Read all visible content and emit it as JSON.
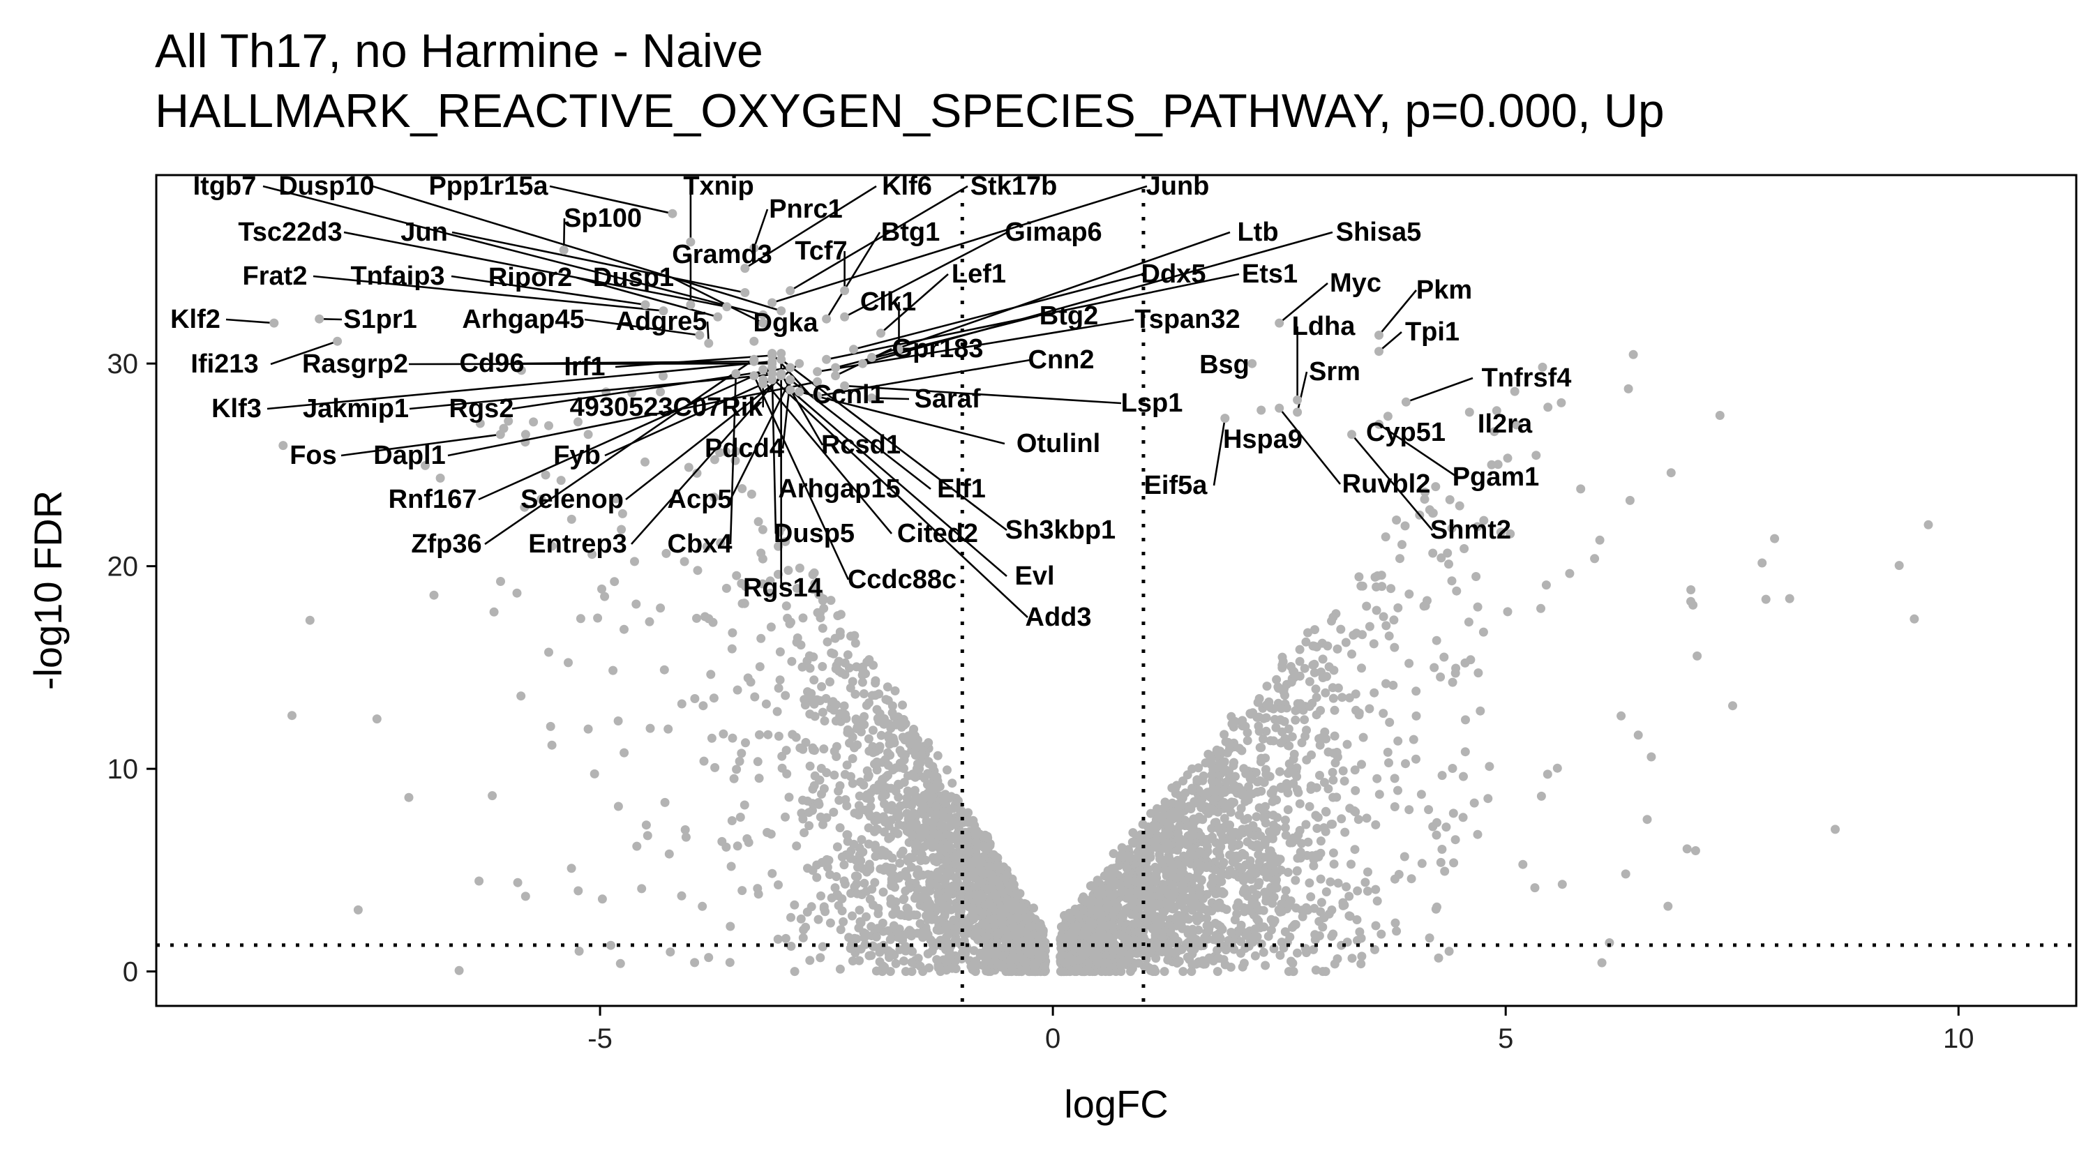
{
  "chart_data": {
    "type": "scatter",
    "title": "All Th17, no Harmine - Naive",
    "subtitle": "HALLMARK_REACTIVE_OXYGEN_SPECIES_PATHWAY, p=0.000, Up",
    "xlabel": "logFC",
    "ylabel": "-log10 FDR",
    "xlim": [
      -9.9,
      11.3
    ],
    "ylim": [
      -1.7,
      39.3
    ],
    "xticks": [
      -5,
      0,
      5,
      10
    ],
    "yticks": [
      0,
      10,
      20,
      30
    ],
    "grid": false,
    "legend": "none",
    "point_color": "#b3b3b3",
    "threshold_lines": {
      "vertical_x": [
        -1,
        1
      ],
      "horizontal_y": [
        1.3
      ]
    },
    "labeled_points": [
      {
        "gene": "Itgb7",
        "x": -3.2,
        "y": 32.4
      },
      {
        "gene": "Dusp10",
        "x": -3.0,
        "y": 32.6
      },
      {
        "gene": "Ppp1r15a",
        "x": -4.2,
        "y": 37.4
      },
      {
        "gene": "Txnip",
        "x": -4.0,
        "y": 36.0
      },
      {
        "gene": "Klf6",
        "x": -3.4,
        "y": 34.7
      },
      {
        "gene": "Stk17b",
        "x": -2.9,
        "y": 33.6
      },
      {
        "gene": "Junb",
        "x": -3.1,
        "y": 33.0
      },
      {
        "gene": "Pnrc1",
        "x": -3.3,
        "y": 35.7
      },
      {
        "gene": "Sp100",
        "x": -5.4,
        "y": 35.6
      },
      {
        "gene": "Tsc22d3",
        "x": -3.6,
        "y": 32.8
      },
      {
        "gene": "Jun",
        "x": -3.4,
        "y": 33.5
      },
      {
        "gene": "Gramd3",
        "x": -4.0,
        "y": 32.9
      },
      {
        "gene": "Tcf7",
        "x": -2.3,
        "y": 33.6
      },
      {
        "gene": "Btg1",
        "x": -2.5,
        "y": 32.2
      },
      {
        "gene": "Gimap6",
        "x": -2.3,
        "y": 32.3
      },
      {
        "gene": "Ltb",
        "x": -2.0,
        "y": 30.3
      },
      {
        "gene": "Shisa5",
        "x": -2.1,
        "y": 30.0
      },
      {
        "gene": "Frat2",
        "x": -4.3,
        "y": 32.6
      },
      {
        "gene": "Tnfaip3",
        "x": -4.5,
        "y": 32.9
      },
      {
        "gene": "Ripor2",
        "x": -3.7,
        "y": 32.3
      },
      {
        "gene": "Dusp1",
        "x": -3.2,
        "y": 32.0
      },
      {
        "gene": "Lef1",
        "x": -1.9,
        "y": 31.5
      },
      {
        "gene": "Ddx5",
        "x": -2.2,
        "y": 30.7
      },
      {
        "gene": "Ets1",
        "x": -2.5,
        "y": 30.2
      },
      {
        "gene": "Myc",
        "x": 2.5,
        "y": 32.0
      },
      {
        "gene": "Pkm",
        "x": 3.6,
        "y": 31.4
      },
      {
        "gene": "Klf2",
        "x": -8.6,
        "y": 32.0
      },
      {
        "gene": "S1pr1",
        "x": -8.1,
        "y": 32.2
      },
      {
        "gene": "Arhgap45",
        "x": -3.9,
        "y": 31.4
      },
      {
        "gene": "Adgre5",
        "x": -3.8,
        "y": 31.0
      },
      {
        "gene": "Dgka",
        "x": -3.3,
        "y": 31.1
      },
      {
        "gene": "Clk1",
        "x": -1.7,
        "y": 30.7
      },
      {
        "gene": "Btg2",
        "x": -2.4,
        "y": 29.8
      },
      {
        "gene": "Tspan32",
        "x": -2.6,
        "y": 29.6
      },
      {
        "gene": "Ldha",
        "x": 2.7,
        "y": 28.2
      },
      {
        "gene": "Tpi1",
        "x": 3.6,
        "y": 30.6
      },
      {
        "gene": "Ifi213",
        "x": -7.9,
        "y": 31.1
      },
      {
        "gene": "Rasgrp2",
        "x": -3.1,
        "y": 30.0
      },
      {
        "gene": "Cd96",
        "x": -3.3,
        "y": 30.1
      },
      {
        "gene": "Irf1",
        "x": -3.1,
        "y": 30.4
      },
      {
        "gene": "Gpr183",
        "x": -2.4,
        "y": 29.4
      },
      {
        "gene": "Cnn2",
        "x": -2.6,
        "y": 28.4
      },
      {
        "gene": "Bsg",
        "x": 2.2,
        "y": 30.0
      },
      {
        "gene": "Srm",
        "x": 2.7,
        "y": 27.6
      },
      {
        "gene": "Tnfrsf4",
        "x": 3.9,
        "y": 28.1
      },
      {
        "gene": "Klf3",
        "x": -3.1,
        "y": 30.1
      },
      {
        "gene": "Jakmip1",
        "x": -3.0,
        "y": 29.5
      },
      {
        "gene": "Rgs2",
        "x": -2.9,
        "y": 29.8
      },
      {
        "gene": "4930523C07Rik",
        "x": -3.2,
        "y": 29.0
      },
      {
        "gene": "Ccnl1",
        "x": -3.1,
        "y": 30.5
      },
      {
        "gene": "Saraf",
        "x": -2.0,
        "y": 28.3
      },
      {
        "gene": "Lsp1",
        "x": -2.3,
        "y": 28.9
      },
      {
        "gene": "Cyp51",
        "x": 3.7,
        "y": 27.4
      },
      {
        "gene": "Il2ra",
        "x": 4.6,
        "y": 27.6
      },
      {
        "gene": "Fos",
        "x": -6.1,
        "y": 26.5
      },
      {
        "gene": "Dapl1",
        "x": -2.6,
        "y": 29.1
      },
      {
        "gene": "Fyb",
        "x": -3.1,
        "y": 29.2
      },
      {
        "gene": "Pdcd4",
        "x": -2.9,
        "y": 29.2
      },
      {
        "gene": "Rcsd1",
        "x": -3.0,
        "y": 29.5
      },
      {
        "gene": "Otulinl",
        "x": -2.8,
        "y": 28.6
      },
      {
        "gene": "Hspa9",
        "x": 2.3,
        "y": 27.7
      },
      {
        "gene": "Eif5a",
        "x": 1.9,
        "y": 27.3
      },
      {
        "gene": "Ruvbl2",
        "x": 2.5,
        "y": 27.8
      },
      {
        "gene": "Pgam1",
        "x": 3.6,
        "y": 27.0
      },
      {
        "gene": "Rnf167",
        "x": -3.1,
        "y": 29.8
      },
      {
        "gene": "Selenop",
        "x": -2.8,
        "y": 30.0
      },
      {
        "gene": "Acp5",
        "x": -2.9,
        "y": 29.2
      },
      {
        "gene": "Arhgap15",
        "x": -3.0,
        "y": 30.5
      },
      {
        "gene": "Elf1",
        "x": -2.9,
        "y": 29.2
      },
      {
        "gene": "Shmt2",
        "x": 3.3,
        "y": 26.5
      },
      {
        "gene": "Zfp36",
        "x": -3.3,
        "y": 30.2
      },
      {
        "gene": "Entrep3",
        "x": -3.0,
        "y": 29.4
      },
      {
        "gene": "Cbx4",
        "x": -3.5,
        "y": 29.5
      },
      {
        "gene": "Dusp5",
        "x": -3.1,
        "y": 29.5
      },
      {
        "gene": "Cited2",
        "x": -3.2,
        "y": 29.2
      },
      {
        "gene": "Sh3kbp1",
        "x": -3.0,
        "y": 30.2
      },
      {
        "gene": "Ccdc88c",
        "x": -3.3,
        "y": 29.4
      },
      {
        "gene": "Evl",
        "x": -2.9,
        "y": 28.7
      },
      {
        "gene": "Rgs14",
        "x": -3.0,
        "y": 29.5
      },
      {
        "gene": "Add3",
        "x": -3.2,
        "y": 29.7
      }
    ],
    "background_points_note": ""
  }
}
